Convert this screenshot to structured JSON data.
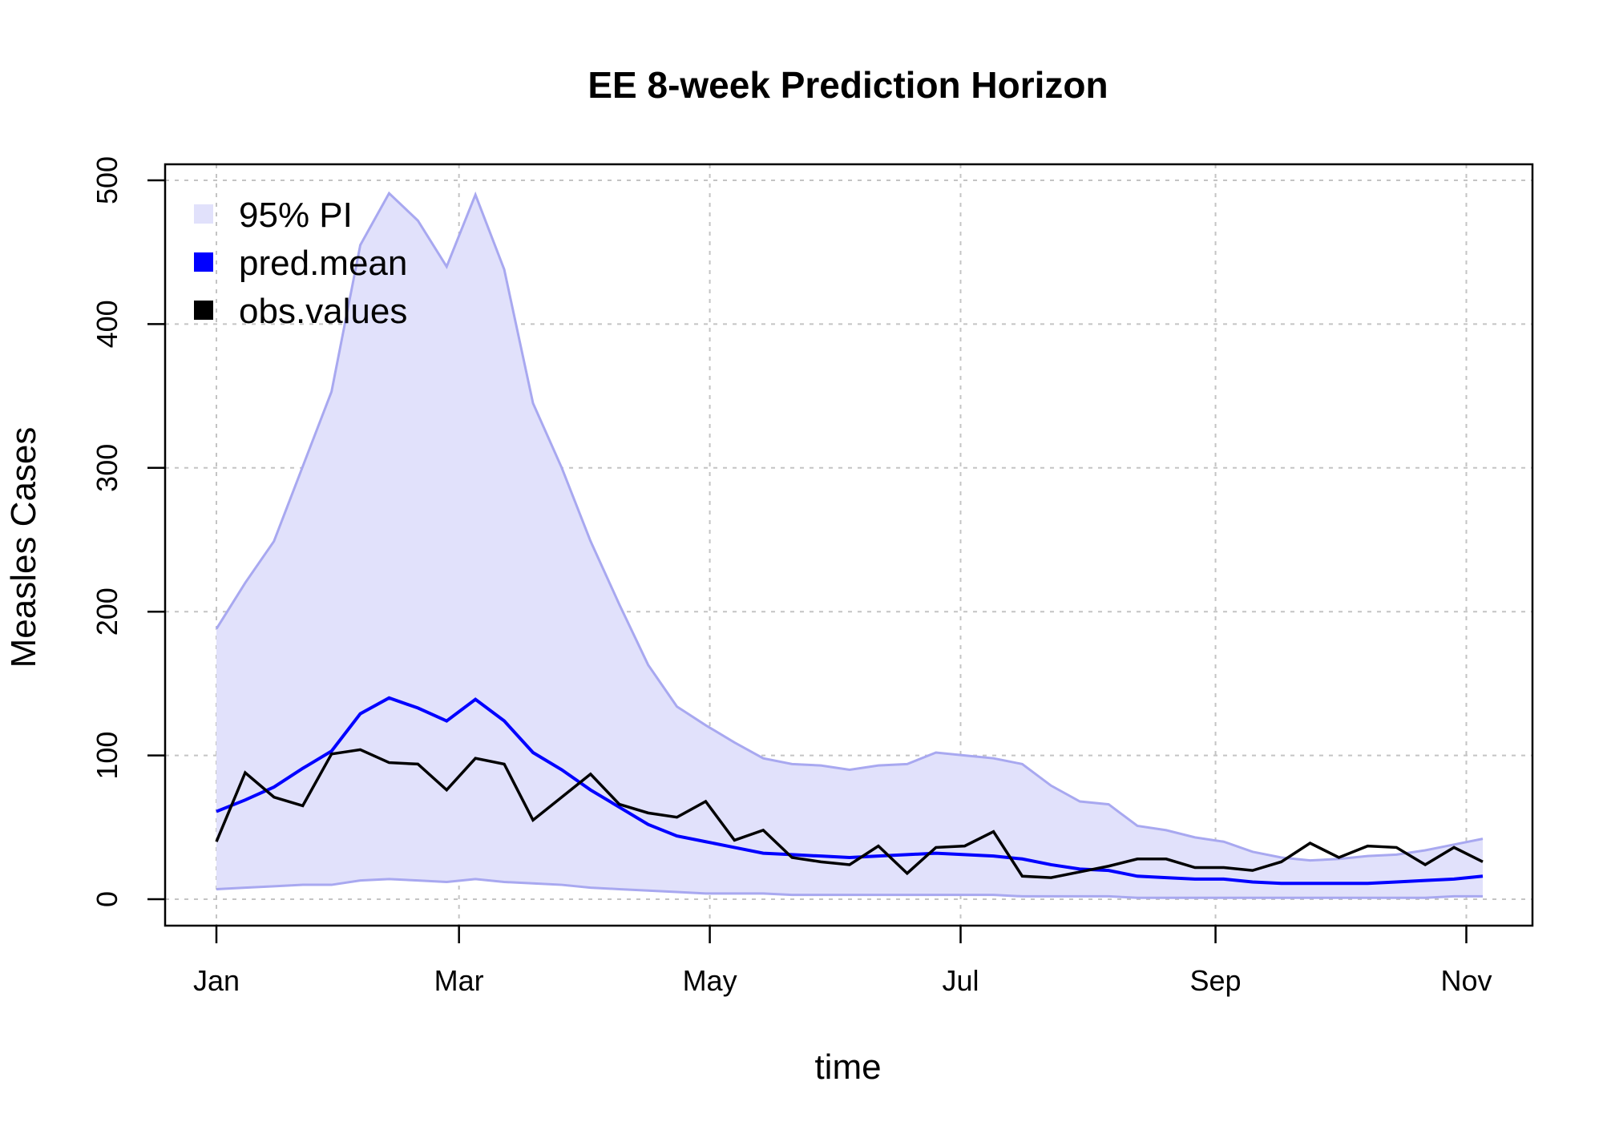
{
  "chart_data": {
    "type": "line",
    "title": "EE 8-week Prediction Horizon",
    "xlabel": "time",
    "ylabel": "Measles Cases",
    "x": [
      "Jan 1",
      "Jan 8",
      "Jan 15",
      "Jan 22",
      "Jan 29",
      "Feb 5",
      "Feb 12",
      "Feb 19",
      "Feb 26",
      "Mar 5",
      "Mar 12",
      "Mar 19",
      "Mar 26",
      "Apr 2",
      "Apr 9",
      "Apr 16",
      "Apr 23",
      "Apr 30",
      "May 7",
      "May 14",
      "May 21",
      "May 28",
      "Jun 4",
      "Jun 11",
      "Jun 18",
      "Jun 25",
      "Jul 2",
      "Jul 9",
      "Jul 16",
      "Jul 23",
      "Jul 30",
      "Aug 6",
      "Aug 13",
      "Aug 20",
      "Aug 27",
      "Sep 3",
      "Sep 10",
      "Sep 17",
      "Sep 24",
      "Oct 1",
      "Oct 8",
      "Oct 15",
      "Oct 22",
      "Oct 29",
      "Nov 5"
    ],
    "xticks": [
      {
        "label": "Jan",
        "x": "Jan 1"
      },
      {
        "label": "Mar",
        "x": "Mar 1"
      },
      {
        "label": "May",
        "x": "May 1"
      },
      {
        "label": "Jul",
        "x": "Jul 1"
      },
      {
        "label": "Sep",
        "x": "Sep 1"
      },
      {
        "label": "Nov",
        "x": "Nov 1"
      }
    ],
    "yticks": [
      "0",
      "100",
      "200",
      "300",
      "400",
      "500"
    ],
    "ylim": [
      -20,
      520
    ],
    "grid": true,
    "legend_position": "top-left",
    "series": [
      {
        "name": "95% PI",
        "kind": "band",
        "color": "#e1e1fb",
        "stroke": "#a8a8f0",
        "lower": [
          7,
          8,
          9,
          10,
          10,
          13,
          14,
          13,
          12,
          14,
          12,
          11,
          10,
          8,
          7,
          6,
          5,
          4,
          4,
          4,
          3,
          3,
          3,
          3,
          3,
          3,
          3,
          3,
          2,
          2,
          2,
          2,
          1,
          1,
          1,
          1,
          1,
          1,
          1,
          1,
          1,
          1,
          1,
          2,
          2
        ],
        "upper": [
          188,
          220,
          249,
          301,
          353,
          455,
          491,
          472,
          440,
          490,
          438,
          345,
          300,
          249,
          205,
          163,
          134,
          121,
          109,
          98,
          94,
          93,
          90,
          93,
          94,
          102,
          100,
          98,
          94,
          79,
          68,
          66,
          51,
          48,
          43,
          40,
          33,
          29,
          27,
          28,
          30,
          31,
          34,
          38,
          42
        ]
      },
      {
        "name": "pred.mean",
        "kind": "line",
        "color": "#0000ff",
        "values": [
          61,
          69,
          78,
          91,
          103,
          129,
          140,
          133,
          124,
          139,
          124,
          102,
          90,
          76,
          64,
          52,
          44,
          40,
          36,
          32,
          31,
          30,
          29,
          30,
          31,
          32,
          31,
          30,
          28,
          24,
          21,
          20,
          16,
          15,
          14,
          14,
          12,
          11,
          11,
          11,
          11,
          12,
          13,
          14,
          16
        ]
      },
      {
        "name": "obs.values",
        "kind": "line",
        "color": "#000000",
        "values": [
          40,
          88,
          71,
          65,
          101,
          104,
          95,
          94,
          76,
          98,
          94,
          55,
          71,
          87,
          66,
          60,
          57,
          68,
          41,
          48,
          29,
          26,
          24,
          37,
          18,
          36,
          37,
          47,
          16,
          15,
          19,
          23,
          28,
          28,
          22,
          22,
          20,
          26,
          39,
          29,
          37,
          36,
          24,
          36,
          26
        ]
      }
    ]
  }
}
